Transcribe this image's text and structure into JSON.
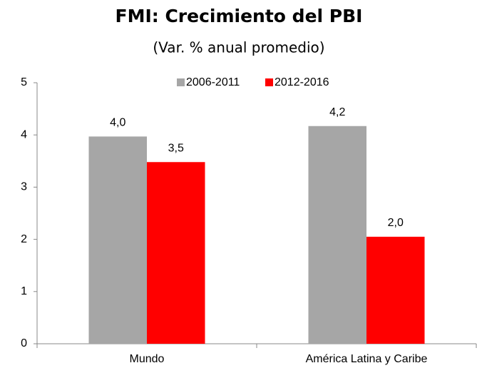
{
  "chart_data": {
    "type": "bar",
    "title": "FMI: Crecimiento del PBI",
    "subtitle": "(Var. % anual promedio)",
    "categories": [
      "Mundo",
      "América Latina y Caribe"
    ],
    "series": [
      {
        "name": "2006-2011",
        "color": "#a6a6a6",
        "values": [
          3.97,
          4.17
        ],
        "value_labels": [
          "4,0",
          "4,2"
        ]
      },
      {
        "name": "2012-2016",
        "color": "#ff0000",
        "values": [
          3.48,
          2.05
        ],
        "value_labels": [
          "3,5",
          "2,0"
        ]
      }
    ],
    "ylim": [
      0,
      5
    ],
    "yticks": [
      0,
      1,
      2,
      3,
      4,
      5
    ],
    "grid": false,
    "legend": "top"
  }
}
